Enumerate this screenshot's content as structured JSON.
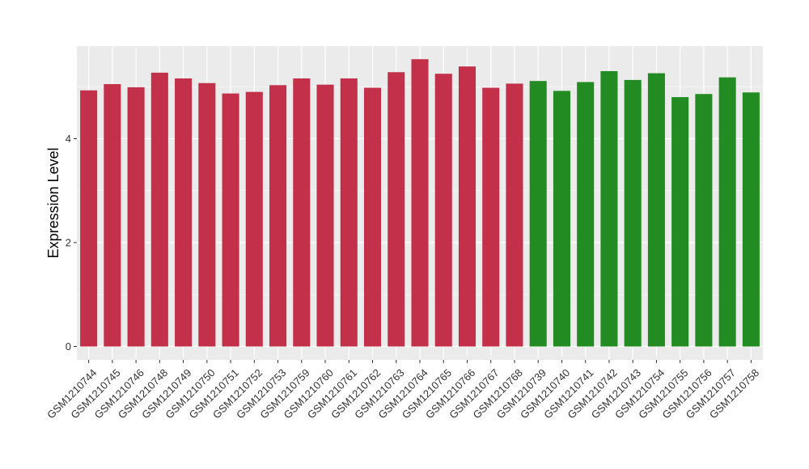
{
  "chart_data": {
    "type": "bar",
    "title": "",
    "xlabel": "",
    "ylabel": "Expression Level",
    "ylim": [
      0,
      5.8
    ],
    "yticks": [
      0,
      2,
      4
    ],
    "grid": true,
    "categories": [
      "GSM1210744",
      "GSM1210745",
      "GSM1210746",
      "GSM1210748",
      "GSM1210749",
      "GSM1210750",
      "GSM1210751",
      "GSM1210752",
      "GSM1210753",
      "GSM1210759",
      "GSM1210760",
      "GSM1210761",
      "GSM1210762",
      "GSM1210763",
      "GSM1210764",
      "GSM1210765",
      "GSM1210766",
      "GSM1210767",
      "GSM1210768",
      "GSM1210739",
      "GSM1210740",
      "GSM1210741",
      "GSM1210742",
      "GSM1210743",
      "GSM1210754",
      "GSM1210755",
      "GSM1210756",
      "GSM1210757",
      "GSM1210758"
    ],
    "values": [
      4.93,
      5.05,
      4.99,
      5.27,
      5.16,
      5.07,
      4.87,
      4.9,
      5.03,
      5.16,
      5.04,
      5.16,
      4.98,
      5.28,
      5.53,
      5.25,
      5.39,
      4.98,
      5.06,
      5.11,
      4.92,
      5.09,
      5.3,
      5.13,
      5.26,
      4.8,
      4.86,
      5.18,
      4.89
    ],
    "group_sizes": [
      19,
      10
    ],
    "colors": {
      "group1": "#C3304A",
      "group2": "#228B22",
      "panel": "#EBEBEB",
      "grid": "#FFFFFF"
    }
  }
}
